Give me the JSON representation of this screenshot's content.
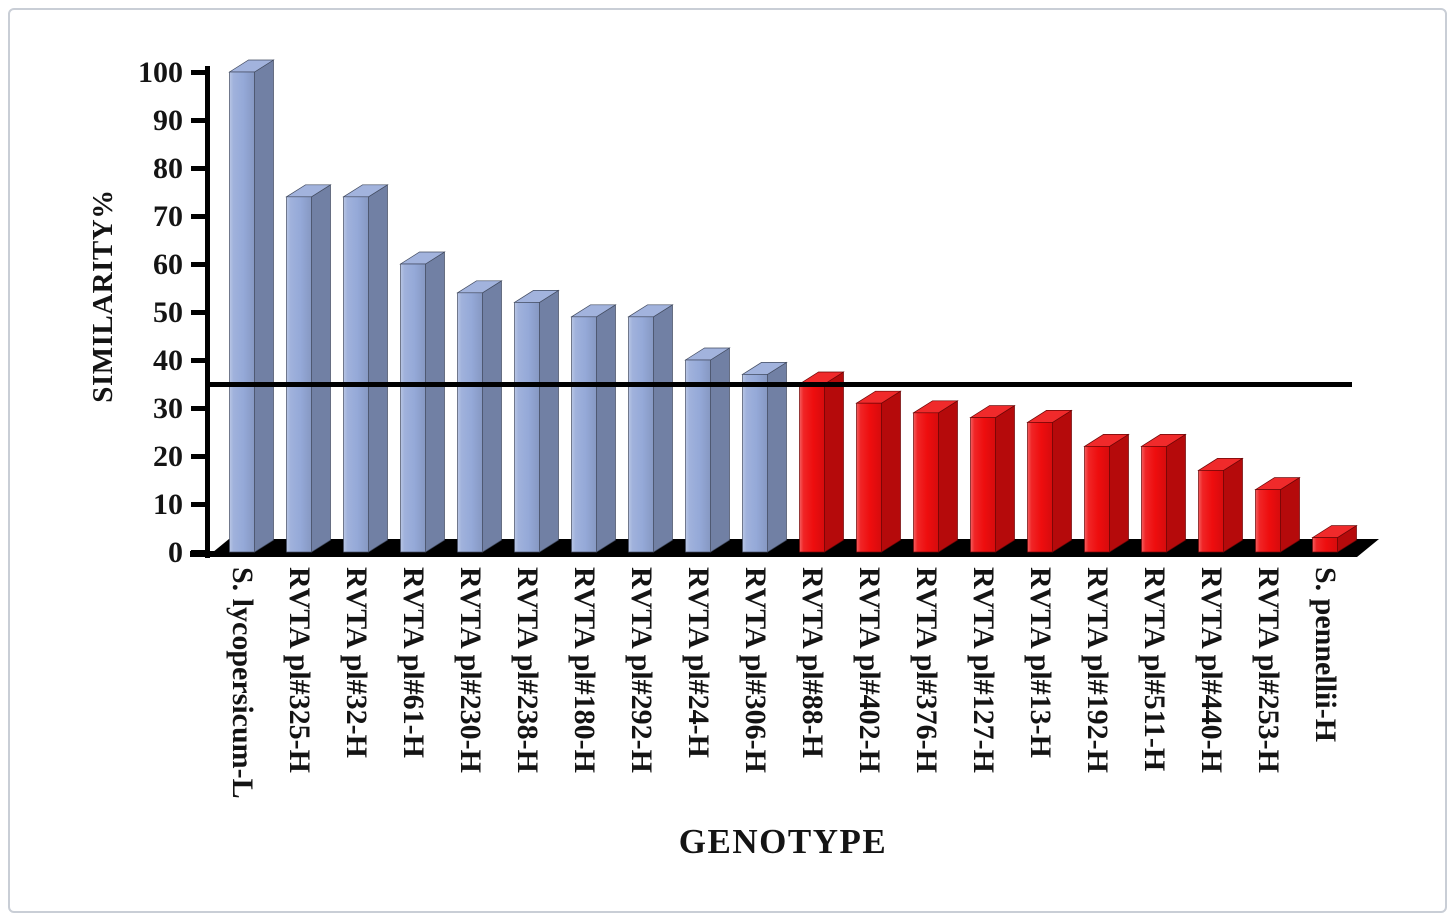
{
  "page": {
    "background": "#ffffff",
    "frame_border_color": "#c9ced6"
  },
  "chart_data": {
    "type": "bar",
    "bar_style": "3d",
    "title": "",
    "xlabel": "GENOTYPE",
    "ylabel": "SIMILARITY%",
    "categories": [
      "S. lycopersicum-L",
      "RVTA pl#325-H",
      "RVTA pl#32-H",
      "RVTA pl#61-H",
      "RVTA pl#230-H",
      "RVTA pl#238-H",
      "RVTA pl#180-H",
      "RVTA pl#292-H",
      "RVTA pl#24-H",
      "RVTA pl#306-H",
      "RVTA pl#88-H",
      "RVTA pl#402-H",
      "RVTA pl#376-H",
      "RVTA pl#127-H",
      "RVTA pl#13-H",
      "RVTA pl#192-H",
      "RVTA pl#511-H",
      "RVTA pl#440-H",
      "RVTA pl#253-H",
      "S. pennellii-H"
    ],
    "values": [
      100,
      74,
      74,
      60,
      54,
      52,
      49,
      49,
      40,
      37,
      35,
      31,
      29,
      28,
      27,
      22,
      22,
      17,
      13,
      3
    ],
    "groups": [
      {
        "name": "above-threshold",
        "color": "#95A9D8",
        "start_index": 0,
        "end_index": 9
      },
      {
        "name": "below-threshold",
        "color": "#EE0D0E",
        "start_index": 10,
        "end_index": 19
      }
    ],
    "threshold_line": {
      "value": 35,
      "color": "#000000"
    },
    "ylim": [
      0,
      100
    ],
    "ytick_step": 10,
    "yticks": [
      0,
      10,
      20,
      30,
      40,
      50,
      60,
      70,
      80,
      90,
      100
    ],
    "axis_color": "#000000",
    "grid": false,
    "legend": null
  }
}
